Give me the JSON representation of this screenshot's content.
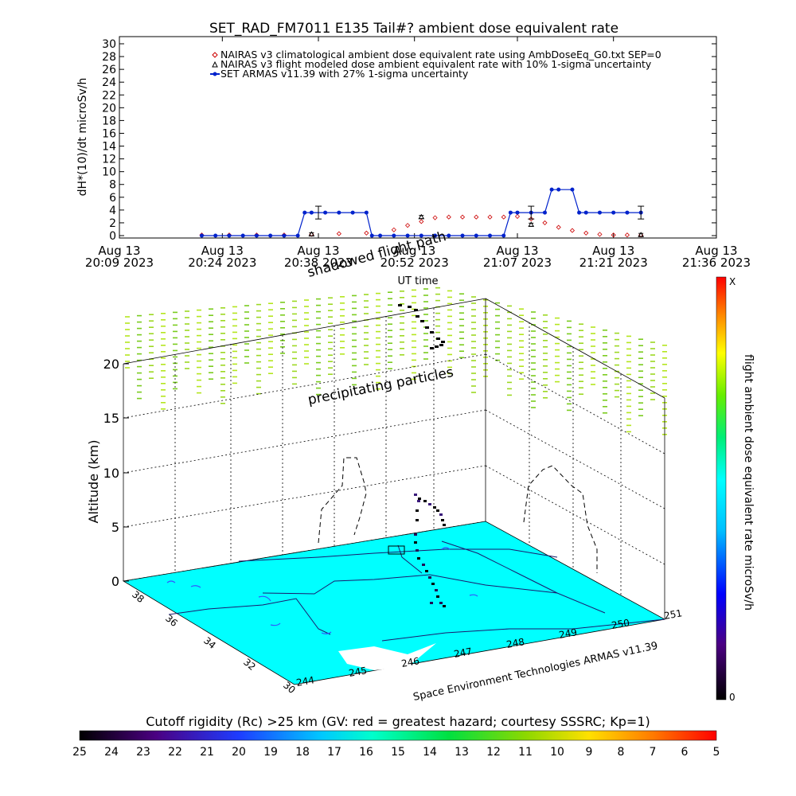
{
  "chart_data": [
    {
      "type": "line",
      "title": "SET_RAD_FM7011  E135 Tail#? ambient dose equivalent rate",
      "ylabel": "dH*(10)/dt microSv/h",
      "xlabel": "UT time",
      "ylim": [
        0,
        30
      ],
      "yticks": [
        0,
        2,
        4,
        6,
        8,
        10,
        12,
        14,
        16,
        18,
        20,
        22,
        24,
        26,
        28,
        30
      ],
      "xlim_minutes": [
        0,
        87
      ],
      "xticks": [
        {
          "m": 0,
          "date": "Aug 13",
          "time": "20:09 2023"
        },
        {
          "m": 15,
          "date": "Aug 13",
          "time": "20:24 2023"
        },
        {
          "m": 29,
          "date": "Aug 13",
          "time": "20:38 2023"
        },
        {
          "m": 43,
          "date": "Aug 13",
          "time": "20:52 2023"
        },
        {
          "m": 58,
          "date": "Aug 13",
          "time": "21:07 2023"
        },
        {
          "m": 72,
          "date": "Aug 13",
          "time": "21:21 2023"
        },
        {
          "m": 87,
          "date": "Aug 13",
          "time": "21:36 2023"
        }
      ],
      "legend": [
        {
          "label": "NAIRAS v3 climatological ambient dose equivalent rate using AmbDoseEq_G0.txt SEP=0",
          "color": "#cc0000",
          "marker": "diamond"
        },
        {
          "label": "NAIRAS v3 flight modeled dose ambient equivalent rate with 10% 1-sigma uncertainty",
          "color": "#000000",
          "marker": "triangle"
        },
        {
          "label": "SET ARMAS v11.39 with 27% 1-sigma uncertainty",
          "color": "#0022cc",
          "marker": "dot"
        }
      ],
      "series": [
        {
          "name": "NAIRAS v3 climatological ambient dose equivalent rate using AmbDoseEq_G0.txt SEP=0",
          "x_minutes": [
            12,
            16,
            20,
            24,
            28,
            32,
            36,
            40,
            42,
            44,
            46,
            48,
            50,
            52,
            54,
            56,
            58,
            60,
            62,
            64,
            66,
            68,
            70,
            72,
            74,
            76
          ],
          "values": [
            0.1,
            0.1,
            0.1,
            0.1,
            0.2,
            0.3,
            0.4,
            0.9,
            1.6,
            2.2,
            2.8,
            2.9,
            2.9,
            2.9,
            2.9,
            2.9,
            3.0,
            2.6,
            2.0,
            1.3,
            0.8,
            0.4,
            0.2,
            0.1,
            0.1,
            0.1
          ]
        },
        {
          "name": "NAIRAS v3 flight modeled dose ambient equivalent rate with 10% 1-sigma uncertainty",
          "x_minutes": [
            28,
            44,
            60,
            76
          ],
          "values": [
            0.2,
            2.9,
            1.7,
            0.1
          ]
        },
        {
          "name": "SET ARMAS v11.39 with 27% 1-sigma uncertainty",
          "x_minutes": [
            12,
            14,
            16,
            18,
            20,
            22,
            24,
            26,
            27,
            28,
            30,
            32,
            34,
            36,
            36.8,
            38,
            40,
            42,
            44,
            46,
            48,
            50,
            52,
            54,
            56,
            57,
            58,
            60,
            62,
            63,
            64,
            66,
            67,
            68,
            70,
            72,
            74,
            76
          ],
          "values": [
            0,
            0,
            0,
            0,
            0,
            0,
            0,
            0,
            3.6,
            3.6,
            3.6,
            3.6,
            3.6,
            3.6,
            0,
            0,
            0,
            0,
            0,
            0,
            0,
            0,
            0,
            0,
            0,
            3.6,
            3.6,
            3.6,
            3.6,
            7.2,
            7.2,
            7.2,
            3.6,
            3.6,
            3.6,
            3.6,
            3.6,
            3.6
          ]
        }
      ],
      "error_bars": [
        {
          "x_minutes": 29,
          "value": 3.6,
          "err": 1.0
        },
        {
          "x_minutes": 60,
          "value": 3.6,
          "err": 1.0
        },
        {
          "x_minutes": 76,
          "value": 3.6,
          "err": 1.0
        }
      ]
    },
    {
      "type": "scatter",
      "subtype": "3d-flight-track",
      "zlabel": "Altitude (km)",
      "zticks": [
        0,
        5,
        10,
        15,
        20
      ],
      "lat_ticks": [
        30,
        32,
        34,
        36,
        38
      ],
      "lon_ticks": [
        244,
        245,
        246,
        247,
        248,
        249,
        250,
        251
      ],
      "annotations": [
        "shadowed flight path",
        "precipitating particles"
      ],
      "credit": "Space Environment Technologies ARMAS v11.39",
      "colorbar_right": {
        "label": "flight ambient dose equivalent rate microSv/h",
        "max_label": "X",
        "min_label": "0"
      },
      "colorbar_bottom": {
        "label": "Cutoff rigidity (Rc) >25 km (GV: red = greatest hazard; courtesy SSSRC; Kp=1)",
        "tick_labels": [
          "25",
          "24",
          "23",
          "22",
          "21",
          "20",
          "19",
          "18",
          "17",
          "16",
          "15",
          "14",
          "13",
          "12",
          "11",
          "10",
          "9",
          "8",
          "7",
          "6",
          "5"
        ]
      },
      "surface_color": "#00ffff"
    }
  ]
}
